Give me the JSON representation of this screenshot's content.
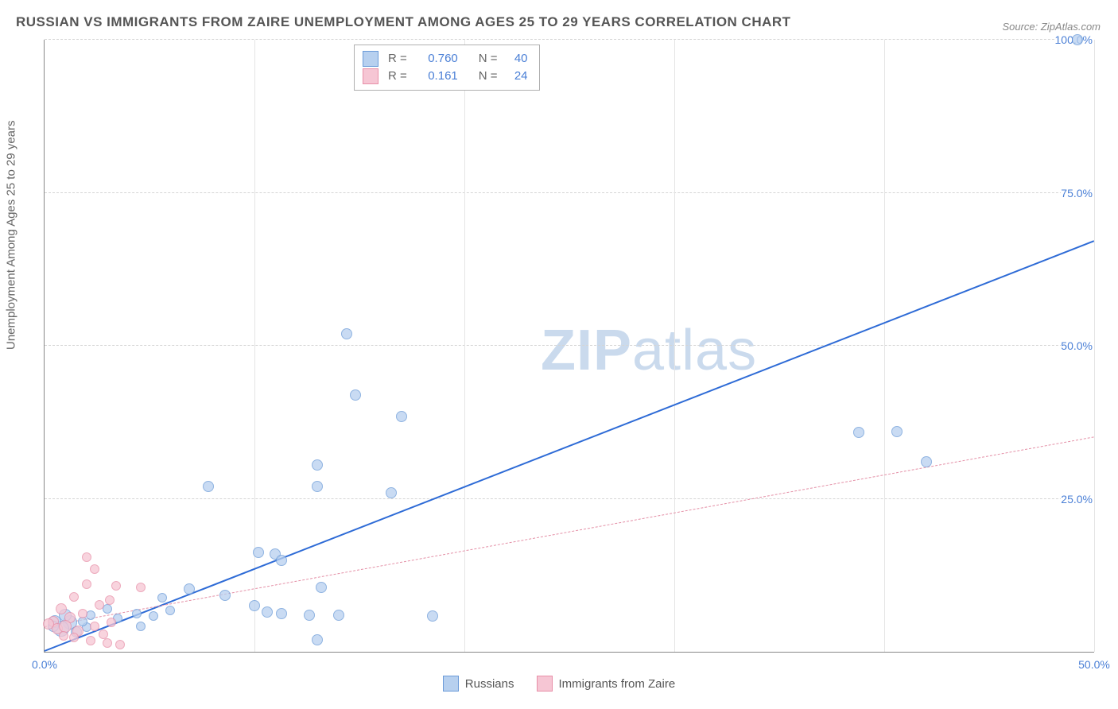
{
  "title": "RUSSIAN VS IMMIGRANTS FROM ZAIRE UNEMPLOYMENT AMONG AGES 25 TO 29 YEARS CORRELATION CHART",
  "source_label": "Source: ZipAtlas.com",
  "ylabel": "Unemployment Among Ages 25 to 29 years",
  "watermark_bold": "ZIP",
  "watermark_rest": "atlas",
  "chart": {
    "type": "scatter",
    "xlim": [
      0,
      50
    ],
    "ylim": [
      0,
      100
    ],
    "x_ticks": [
      0,
      10,
      20,
      30,
      40,
      50
    ],
    "x_tick_labels": {
      "0": "0.0%",
      "50": "50.0%"
    },
    "y_ticks": [
      0,
      25,
      50,
      75,
      100
    ],
    "y_tick_labels": {
      "25": "25.0%",
      "50": "50.0%",
      "75": "75.0%",
      "100": "100.0%"
    },
    "grid_color": "#d5d5d5",
    "background_color": "#ffffff",
    "axis_color": "#888888",
    "tick_label_color": "#4a7fd6",
    "series": [
      {
        "name": "Russians",
        "marker_fill": "#b7d0ef",
        "marker_stroke": "#6a9ad8",
        "marker_opacity": 0.75,
        "trendline": {
          "color": "#2e6bd6",
          "width": 2.5,
          "dash": "solid",
          "x0": 0,
          "y0": 0,
          "x1": 50,
          "y1": 67
        },
        "R": "0.760",
        "N": "40",
        "points": [
          {
            "x": 49.2,
            "y": 100,
            "r": 7
          },
          {
            "x": 38.8,
            "y": 35.8,
            "r": 7
          },
          {
            "x": 40.6,
            "y": 36.0,
            "r": 7
          },
          {
            "x": 42.0,
            "y": 31.0,
            "r": 7
          },
          {
            "x": 14.4,
            "y": 52.0,
            "r": 7
          },
          {
            "x": 14.8,
            "y": 42.0,
            "r": 7
          },
          {
            "x": 17.0,
            "y": 38.5,
            "r": 7
          },
          {
            "x": 13.0,
            "y": 30.5,
            "r": 7
          },
          {
            "x": 7.8,
            "y": 27.0,
            "r": 7
          },
          {
            "x": 13.0,
            "y": 27.0,
            "r": 7
          },
          {
            "x": 16.5,
            "y": 26.0,
            "r": 7
          },
          {
            "x": 10.2,
            "y": 16.2,
            "r": 7
          },
          {
            "x": 11.0,
            "y": 16.0,
            "r": 7
          },
          {
            "x": 11.3,
            "y": 15.0,
            "r": 7
          },
          {
            "x": 6.9,
            "y": 10.2,
            "r": 7
          },
          {
            "x": 8.6,
            "y": 9.2,
            "r": 7
          },
          {
            "x": 10.0,
            "y": 7.5,
            "r": 7
          },
          {
            "x": 10.6,
            "y": 6.5,
            "r": 7
          },
          {
            "x": 11.3,
            "y": 6.3,
            "r": 7
          },
          {
            "x": 12.6,
            "y": 6.0,
            "r": 7
          },
          {
            "x": 13.2,
            "y": 10.5,
            "r": 7
          },
          {
            "x": 13.0,
            "y": 2.0,
            "r": 7
          },
          {
            "x": 14.0,
            "y": 6.0,
            "r": 7
          },
          {
            "x": 18.5,
            "y": 5.8,
            "r": 7
          },
          {
            "x": 3.0,
            "y": 7.0,
            "r": 6
          },
          {
            "x": 3.5,
            "y": 5.5,
            "r": 6
          },
          {
            "x": 4.4,
            "y": 6.2,
            "r": 6
          },
          {
            "x": 4.6,
            "y": 4.2,
            "r": 6
          },
          {
            "x": 5.2,
            "y": 5.8,
            "r": 6
          },
          {
            "x": 5.6,
            "y": 8.8,
            "r": 6
          },
          {
            "x": 6.0,
            "y": 6.8,
            "r": 6
          },
          {
            "x": 2.0,
            "y": 4.0,
            "r": 6
          },
          {
            "x": 1.2,
            "y": 4.8,
            "r": 9
          },
          {
            "x": 0.8,
            "y": 3.8,
            "r": 10
          },
          {
            "x": 1.0,
            "y": 6.0,
            "r": 8
          },
          {
            "x": 0.5,
            "y": 5.0,
            "r": 8
          },
          {
            "x": 1.5,
            "y": 3.2,
            "r": 7
          },
          {
            "x": 2.2,
            "y": 6.0,
            "r": 6
          },
          {
            "x": 0.4,
            "y": 4.2,
            "r": 7
          },
          {
            "x": 1.8,
            "y": 5.0,
            "r": 6
          }
        ]
      },
      {
        "name": "Immigrants from Zaire",
        "marker_fill": "#f6c6d4",
        "marker_stroke": "#e88fa8",
        "marker_opacity": 0.75,
        "trendline": {
          "color": "#e48fa6",
          "width": 1.2,
          "dash": "6,5",
          "x0": 0,
          "y0": 4,
          "x1": 50,
          "y1": 35
        },
        "R": "0.161",
        "N": "24",
        "points": [
          {
            "x": 2.0,
            "y": 15.5,
            "r": 6
          },
          {
            "x": 2.4,
            "y": 13.5,
            "r": 6
          },
          {
            "x": 2.0,
            "y": 11.0,
            "r": 6
          },
          {
            "x": 3.4,
            "y": 10.8,
            "r": 6
          },
          {
            "x": 4.6,
            "y": 10.5,
            "r": 6
          },
          {
            "x": 3.1,
            "y": 8.5,
            "r": 6
          },
          {
            "x": 2.6,
            "y": 7.6,
            "r": 6
          },
          {
            "x": 1.4,
            "y": 9.0,
            "r": 6
          },
          {
            "x": 0.8,
            "y": 7.0,
            "r": 7
          },
          {
            "x": 0.4,
            "y": 5.0,
            "r": 7
          },
          {
            "x": 1.2,
            "y": 5.6,
            "r": 7
          },
          {
            "x": 0.6,
            "y": 3.8,
            "r": 7
          },
          {
            "x": 1.6,
            "y": 3.4,
            "r": 7
          },
          {
            "x": 1.0,
            "y": 4.2,
            "r": 8
          },
          {
            "x": 1.4,
            "y": 2.4,
            "r": 6
          },
          {
            "x": 2.4,
            "y": 4.2,
            "r": 6
          },
          {
            "x": 2.8,
            "y": 2.8,
            "r": 6
          },
          {
            "x": 2.2,
            "y": 1.8,
            "r": 6
          },
          {
            "x": 3.0,
            "y": 1.4,
            "r": 6
          },
          {
            "x": 3.6,
            "y": 1.2,
            "r": 6
          },
          {
            "x": 3.2,
            "y": 4.8,
            "r": 6
          },
          {
            "x": 0.2,
            "y": 4.5,
            "r": 7
          },
          {
            "x": 0.9,
            "y": 2.6,
            "r": 6
          },
          {
            "x": 1.8,
            "y": 6.2,
            "r": 6
          }
        ]
      }
    ]
  },
  "legend_top": {
    "rows": [
      {
        "swatch_fill": "#b7d0ef",
        "swatch_stroke": "#6a9ad8",
        "r_label": "R =",
        "r_val": "0.760",
        "n_label": "N =",
        "n_val": "40"
      },
      {
        "swatch_fill": "#f6c6d4",
        "swatch_stroke": "#e88fa8",
        "r_label": "R =",
        "r_val": "0.161",
        "n_label": "N =",
        "n_val": "24"
      }
    ]
  },
  "legend_bottom": {
    "items": [
      {
        "fill": "#b7d0ef",
        "stroke": "#6a9ad8",
        "label": "Russians"
      },
      {
        "fill": "#f6c6d4",
        "stroke": "#e88fa8",
        "label": "Immigrants from Zaire"
      }
    ]
  }
}
